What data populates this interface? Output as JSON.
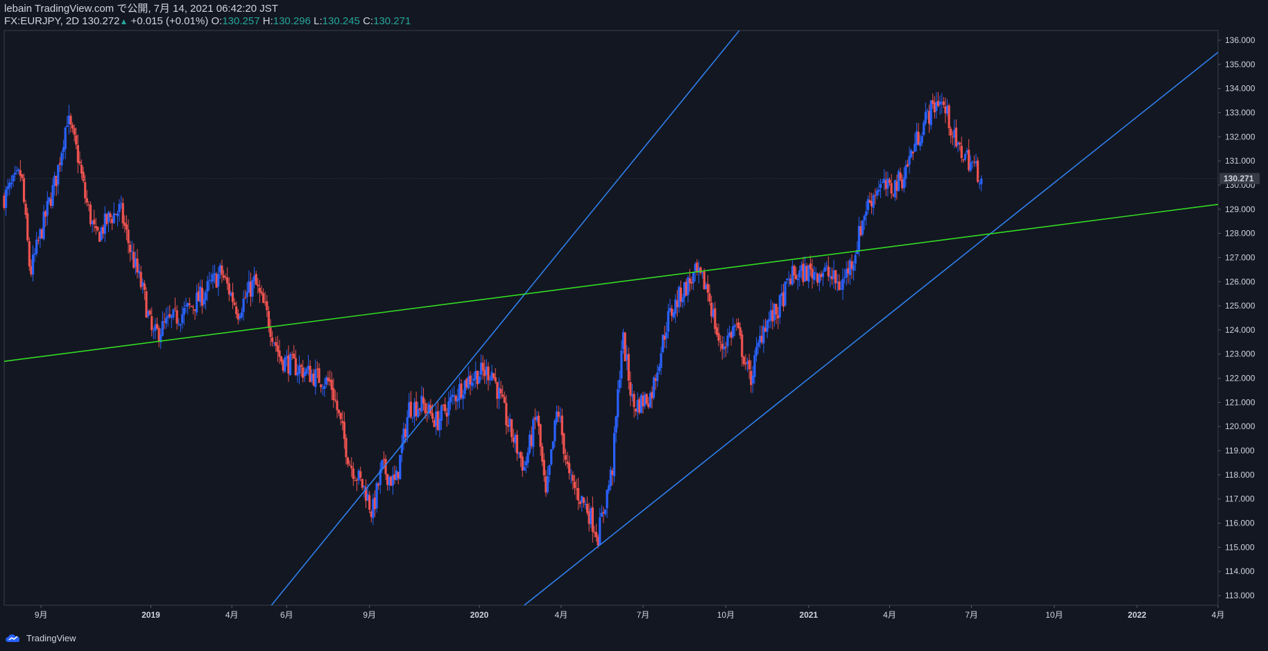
{
  "header": {
    "line1": "lebain TradingView.com で公開, 7月 14, 2021 06:42:20 JST",
    "symbol": "FX:EURJPY, 2D",
    "last": "130.272",
    "change": "+0.015 (+0.01%)",
    "o_label": "O:",
    "o_value": "130.257",
    "h_label": "H:",
    "h_value": "130.296",
    "l_label": "L:",
    "l_value": "130.245",
    "c_label": "C:",
    "c_value": "130.271"
  },
  "footer": {
    "brand": "TradingView"
  },
  "colors": {
    "background": "#131722",
    "up": "#2962ff",
    "down": "#ef5350",
    "blue_line": "#2f80ed",
    "green_line": "#33dd22",
    "text": "#d1d4dc"
  },
  "chart_data": {
    "type": "candlestick",
    "symbol": "FX:EURJPY",
    "interval": "2D",
    "last_price": "130.271",
    "ylim": [
      112.6,
      136.4
    ],
    "y_ticks": [
      113,
      114,
      115,
      116,
      117,
      118,
      119,
      120,
      121,
      122,
      123,
      124,
      125,
      126,
      127,
      128,
      129,
      130,
      131,
      132,
      133,
      134,
      135,
      136
    ],
    "x_range": [
      "2018-07-22",
      "2022-04-01"
    ],
    "x_ticks": [
      {
        "date": "2018-09-01",
        "label": "9月",
        "bold": false
      },
      {
        "date": "2019-01-01",
        "label": "2019",
        "bold": true
      },
      {
        "date": "2019-04-01",
        "label": "4月",
        "bold": false
      },
      {
        "date": "2019-06-01",
        "label": "6月",
        "bold": false
      },
      {
        "date": "2019-09-01",
        "label": "9月",
        "bold": false
      },
      {
        "date": "2020-01-01",
        "label": "2020",
        "bold": true
      },
      {
        "date": "2020-04-01",
        "label": "4月",
        "bold": false
      },
      {
        "date": "2020-07-01",
        "label": "7月",
        "bold": false
      },
      {
        "date": "2020-10-01",
        "label": "10月",
        "bold": false
      },
      {
        "date": "2021-01-01",
        "label": "2021",
        "bold": true
      },
      {
        "date": "2021-04-01",
        "label": "4月",
        "bold": false
      },
      {
        "date": "2021-07-01",
        "label": "7月",
        "bold": false
      },
      {
        "date": "2021-10-01",
        "label": "10月",
        "bold": false
      },
      {
        "date": "2022-01-01",
        "label": "2022",
        "bold": true
      },
      {
        "date": "2022-04-01",
        "label": "4月",
        "bold": false
      }
    ],
    "close_anchors": [
      [
        "2018-07-22",
        129.5
      ],
      [
        "2018-08-10",
        130.5
      ],
      [
        "2018-08-20",
        126.3
      ],
      [
        "2018-08-28",
        127.5
      ],
      [
        "2018-09-08",
        129.0
      ],
      [
        "2018-09-18",
        130.3
      ],
      [
        "2018-09-30",
        132.8
      ],
      [
        "2018-10-12",
        131.2
      ],
      [
        "2018-10-20",
        129.5
      ],
      [
        "2018-11-01",
        127.8
      ],
      [
        "2018-11-15",
        128.6
      ],
      [
        "2018-11-28",
        129.0
      ],
      [
        "2018-12-10",
        127.2
      ],
      [
        "2018-12-24",
        125.5
      ],
      [
        "2019-01-03",
        123.7
      ],
      [
        "2019-01-20",
        124.3
      ],
      [
        "2019-02-10",
        124.8
      ],
      [
        "2019-03-01",
        125.5
      ],
      [
        "2019-03-20",
        126.4
      ],
      [
        "2019-04-08",
        124.8
      ],
      [
        "2019-04-26",
        126.0
      ],
      [
        "2019-05-10",
        124.6
      ],
      [
        "2019-05-25",
        122.8
      ],
      [
        "2019-06-15",
        122.4
      ],
      [
        "2019-07-01",
        122.1
      ],
      [
        "2019-07-20",
        121.8
      ],
      [
        "2019-08-10",
        118.5
      ],
      [
        "2019-08-28",
        117.3
      ],
      [
        "2019-09-04",
        116.4
      ],
      [
        "2019-09-15",
        118.3
      ],
      [
        "2019-09-30",
        117.6
      ],
      [
        "2019-10-15",
        120.8
      ],
      [
        "2019-10-30",
        120.9
      ],
      [
        "2019-11-15",
        120.2
      ],
      [
        "2019-11-30",
        121.0
      ],
      [
        "2019-12-15",
        121.8
      ],
      [
        "2019-12-30",
        122.2
      ],
      [
        "2020-01-15",
        122.3
      ],
      [
        "2020-01-31",
        120.3
      ],
      [
        "2020-02-20",
        118.3
      ],
      [
        "2020-03-05",
        120.5
      ],
      [
        "2020-03-15",
        117.0
      ],
      [
        "2020-03-28",
        120.8
      ],
      [
        "2020-04-10",
        117.8
      ],
      [
        "2020-04-30",
        116.6
      ],
      [
        "2020-05-12",
        115.5
      ],
      [
        "2020-05-28",
        118.3
      ],
      [
        "2020-06-08",
        123.8
      ],
      [
        "2020-06-20",
        120.8
      ],
      [
        "2020-07-10",
        121.3
      ],
      [
        "2020-07-28",
        124.4
      ],
      [
        "2020-08-12",
        125.5
      ],
      [
        "2020-08-28",
        126.3
      ],
      [
        "2020-09-10",
        125.8
      ],
      [
        "2020-09-25",
        123.2
      ],
      [
        "2020-10-12",
        124.2
      ],
      [
        "2020-10-28",
        121.9
      ],
      [
        "2020-11-12",
        124.2
      ],
      [
        "2020-11-28",
        124.8
      ],
      [
        "2020-12-12",
        126.2
      ],
      [
        "2020-12-31",
        126.4
      ],
      [
        "2021-01-20",
        126.4
      ],
      [
        "2021-02-05",
        125.8
      ],
      [
        "2021-02-20",
        127.0
      ],
      [
        "2021-03-05",
        129.0
      ],
      [
        "2021-03-20",
        130.0
      ],
      [
        "2021-04-02",
        129.8
      ],
      [
        "2021-04-15",
        130.3
      ],
      [
        "2021-04-28",
        131.6
      ],
      [
        "2021-05-12",
        132.8
      ],
      [
        "2021-05-26",
        133.6
      ],
      [
        "2021-06-05",
        132.8
      ],
      [
        "2021-06-15",
        131.5
      ],
      [
        "2021-06-25",
        131.2
      ],
      [
        "2021-07-05",
        130.7
      ],
      [
        "2021-07-13",
        130.27
      ]
    ],
    "trendlines": [
      {
        "color": "blue",
        "from": [
          "2019-05-15",
          112.6
        ],
        "to": [
          "2020-10-16",
          136.4
        ]
      },
      {
        "color": "blue",
        "from": [
          "2020-02-20",
          112.6
        ],
        "to": [
          "2022-04-01",
          135.5
        ]
      },
      {
        "color": "green",
        "from": [
          "2018-07-22",
          122.7
        ],
        "to": [
          "2022-04-01",
          129.2
        ]
      }
    ]
  }
}
